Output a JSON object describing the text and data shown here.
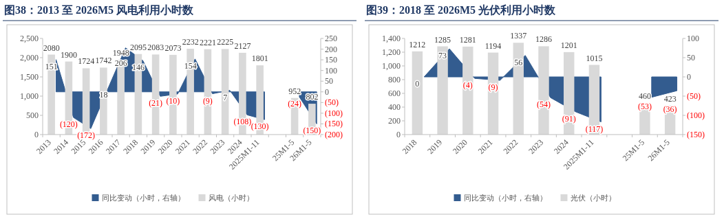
{
  "chart_data": [
    {
      "type": "bar",
      "title": "图38：2013 至 2026M5 风电利用小时数",
      "categories": [
        "2013",
        "2014",
        "2015",
        "2016",
        "2017",
        "2018",
        "2019",
        "2020",
        "2021",
        "2022",
        "2023",
        "2024",
        "2025M1-11",
        null,
        "25M1-5",
        "26M1-5"
      ],
      "series": [
        {
          "name": "同比变动（小时，右轴）",
          "type": "area",
          "axis": "y2",
          "color": "#335c8f",
          "values": [
            151,
            -120,
            -172,
            18,
            206,
            146,
            -21,
            -10,
            154,
            -9,
            7,
            -108,
            -130,
            null,
            -24,
            -150
          ],
          "value_labels": [
            "151",
            "(120)",
            "(172)",
            "18",
            "206",
            "146",
            "(21)",
            "(10)",
            "154",
            "(9)",
            "7",
            "(108)",
            "(130)",
            null,
            "(24)",
            "(150)"
          ]
        },
        {
          "name": "风电（小时）",
          "color": "#d9d9d9",
          "values": [
            2080,
            1900,
            1724,
            1742,
            1948,
            2095,
            2083,
            2073,
            2232,
            2221,
            2225,
            2127,
            1801,
            null,
            952,
            802
          ],
          "value_labels": [
            "2080",
            "1900",
            "1724",
            "1742",
            "1948",
            "2095",
            "2083",
            "2073",
            "2232",
            "2221",
            "2225",
            "2127",
            "1801",
            null,
            "952",
            "802"
          ]
        }
      ],
      "ylim": [
        0,
        2500
      ],
      "yticks": [
        0,
        {
          "value": 500,
          "label": "500"
        },
        {
          "value": 1000,
          "label": "1,000"
        },
        {
          "value": 1500,
          "label": "1,500"
        },
        {
          "value": 2000,
          "label": "2,000"
        },
        {
          "value": 2500,
          "label": "2,500"
        }
      ],
      "y2lim": [
        -200,
        250
      ],
      "y2ticks": [
        {
          "value": -200,
          "label": "(200)"
        },
        {
          "value": -150,
          "label": "(150)"
        },
        {
          "value": -100,
          "label": "(100)"
        },
        {
          "value": -50,
          "label": "(50)"
        },
        0,
        50,
        100,
        150,
        200,
        250
      ],
      "legend": "bottom"
    },
    {
      "type": "bar",
      "title": "图39：2018 至 2026M5 光伏利用小时数",
      "categories": [
        "2018",
        "2019",
        "2020",
        "2021",
        "2022",
        "2023",
        "2024",
        "2025M1-11",
        null,
        "25M1-5",
        "26M1-5"
      ],
      "series": [
        {
          "name": "同比变动（小时，右轴）",
          "type": "area",
          "axis": "y2",
          "color": "#335c8f",
          "values": [
            0,
            73,
            -4,
            -9,
            56,
            -54,
            -91,
            -117,
            null,
            -53,
            -36
          ],
          "value_labels": [
            "0",
            "73",
            "(4)",
            "(9)",
            "56",
            "(54)",
            "(91)",
            "(117)",
            null,
            "(53)",
            "(36)"
          ]
        },
        {
          "name": "光伏（小时）",
          "color": "#d9d9d9",
          "values": [
            1212,
            1285,
            1281,
            1194,
            1337,
            1286,
            1201,
            1015,
            null,
            460,
            423
          ],
          "value_labels": [
            "1212",
            "1285",
            "1281",
            "1194",
            "1337",
            "1286",
            "1201",
            "1015",
            null,
            "460",
            "423"
          ]
        }
      ],
      "ylim": [
        0,
        1400
      ],
      "yticks": [
        0,
        200,
        400,
        600,
        800,
        {
          "value": 1000,
          "label": "1,000"
        },
        {
          "value": 1200,
          "label": "1,200"
        },
        {
          "value": 1400,
          "label": "1,400"
        }
      ],
      "y2lim": [
        -150,
        100
      ],
      "y2ticks": [
        {
          "value": -150,
          "label": "(150)"
        },
        {
          "value": -100,
          "label": "(100)"
        },
        {
          "value": -50,
          "label": "(50)"
        },
        0,
        50,
        100
      ],
      "legend": "bottom"
    }
  ]
}
